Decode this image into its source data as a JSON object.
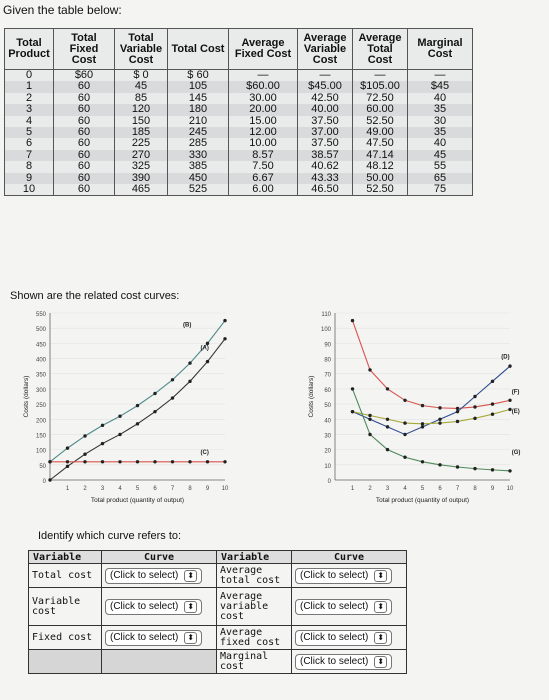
{
  "page": {
    "title": "Given the table below:"
  },
  "cost_table": {
    "headers": [
      "Total Product",
      "Total Fixed Cost",
      "Total Variable Cost",
      "Total Cost",
      "Average Fixed Cost",
      "Average Variable Cost",
      "Average Total Cost",
      "Marginal Cost"
    ],
    "rows": [
      [
        "0",
        "$60",
        "$ 0",
        "$ 60",
        "—",
        "—",
        "—",
        "—"
      ],
      [
        "1",
        "60",
        "45",
        "105",
        "$60.00",
        "$45.00",
        "$105.00",
        "$45"
      ],
      [
        "2",
        "60",
        "85",
        "145",
        "30.00",
        "42.50",
        "72.50",
        "40"
      ],
      [
        "3",
        "60",
        "120",
        "180",
        "20.00",
        "40.00",
        "60.00",
        "35"
      ],
      [
        "4",
        "60",
        "150",
        "210",
        "15.00",
        "37.50",
        "52.50",
        "30"
      ],
      [
        "5",
        "60",
        "185",
        "245",
        "12.00",
        "37.00",
        "49.00",
        "35"
      ],
      [
        "6",
        "60",
        "225",
        "285",
        "10.00",
        "37.50",
        "47.50",
        "40"
      ],
      [
        "7",
        "60",
        "270",
        "330",
        "8.57",
        "38.57",
        "47.14",
        "45"
      ],
      [
        "8",
        "60",
        "325",
        "385",
        "7.50",
        "40.62",
        "48.12",
        "55"
      ],
      [
        "9",
        "60",
        "390",
        "450",
        "6.67",
        "43.33",
        "50.00",
        "65"
      ],
      [
        "10",
        "60",
        "465",
        "525",
        "6.00",
        "46.50",
        "52.50",
        "75"
      ]
    ]
  },
  "curves_heading": "Shown are the related cost curves:",
  "chart_data": [
    {
      "type": "line",
      "ylabel": "Costs (dollars)",
      "xlabel": "Total product (quantity of output)",
      "x": [
        1,
        2,
        3,
        4,
        5,
        6,
        7,
        8,
        9,
        10
      ],
      "x_ticks": [
        "1",
        "2",
        "3",
        "4",
        "5",
        "6",
        "7",
        "8",
        "9",
        "10"
      ],
      "y_ticks": [
        "550",
        "500",
        "450",
        "400",
        "350",
        "300",
        "250",
        "200",
        "150",
        "100",
        "50",
        "0"
      ],
      "ylim": [
        0,
        550
      ],
      "series": [
        {
          "name": "(B)",
          "color": "#4f8a8b",
          "x": [
            0,
            1,
            2,
            3,
            4,
            5,
            6,
            7,
            8,
            9,
            10
          ],
          "values": [
            60,
            105,
            145,
            180,
            210,
            245,
            285,
            330,
            385,
            450,
            525
          ]
        },
        {
          "name": "(A)",
          "color": "#333333",
          "x": [
            0,
            1,
            2,
            3,
            4,
            5,
            6,
            7,
            8,
            9,
            10
          ],
          "values": [
            0,
            45,
            85,
            120,
            150,
            185,
            225,
            270,
            325,
            390,
            465
          ]
        },
        {
          "name": "(C)",
          "color": "#d9534f",
          "x": [
            0,
            1,
            2,
            3,
            4,
            5,
            6,
            7,
            8,
            9,
            10
          ],
          "values": [
            60,
            60,
            60,
            60,
            60,
            60,
            60,
            60,
            60,
            60,
            60
          ]
        }
      ]
    },
    {
      "type": "line",
      "ylabel": "Costs (dollars)",
      "xlabel": "Total product (quantity of output)",
      "x": [
        1,
        2,
        3,
        4,
        5,
        6,
        7,
        8,
        9,
        10
      ],
      "x_ticks": [
        "1",
        "2",
        "3",
        "4",
        "5",
        "6",
        "7",
        "8",
        "9",
        "10"
      ],
      "y_ticks": [
        "110",
        "100",
        "90",
        "80",
        "70",
        "60",
        "50",
        "40",
        "30",
        "20",
        "10",
        "0"
      ],
      "ylim": [
        0,
        110
      ],
      "series": [
        {
          "name": "(D)",
          "color": "#d9534f",
          "x": [
            1,
            2,
            3,
            4,
            5,
            6,
            7,
            8,
            9,
            10
          ],
          "values": [
            105,
            72.5,
            60,
            52.5,
            49,
            47.5,
            47.14,
            48.12,
            50,
            52.5
          ]
        },
        {
          "name": "(F)",
          "color": "#2e4d8f",
          "x": [
            1,
            2,
            3,
            4,
            5,
            6,
            7,
            8,
            9,
            10
          ],
          "values": [
            45,
            40,
            35,
            30,
            35,
            40,
            45,
            55,
            65,
            75
          ]
        },
        {
          "name": "(E)",
          "color": "#a8a83a",
          "x": [
            1,
            2,
            3,
            4,
            5,
            6,
            7,
            8,
            9,
            10
          ],
          "values": [
            45,
            42.5,
            40,
            37.5,
            37,
            37.5,
            38.57,
            40.62,
            43.33,
            46.5
          ]
        },
        {
          "name": "(G)",
          "color": "#4e8a5a",
          "x": [
            1,
            2,
            3,
            4,
            5,
            6,
            7,
            8,
            9,
            10
          ],
          "values": [
            60,
            30,
            20,
            15,
            12,
            10,
            8.57,
            7.5,
            6.67,
            6
          ]
        }
      ]
    }
  ],
  "question": {
    "prompt": "Identify which curve refers to:",
    "headers": [
      "Variable",
      "Curve",
      "Variable",
      "Curve"
    ],
    "left": [
      {
        "label": "Total cost",
        "select": "(Click to select)",
        "arrow": "⬍"
      },
      {
        "label": "Variable cost",
        "select": "(Click to select)",
        "arrow": "⬍"
      },
      {
        "label": "Fixed cost",
        "select": "(Click to select)",
        "arrow": "⬍"
      }
    ],
    "right": [
      {
        "label": "Average total cost",
        "select": "(Click to select)",
        "arrow": "⬍"
      },
      {
        "label": "Average variable cost",
        "select": "(Click to select)",
        "arrow": "⬍"
      },
      {
        "label": "Average fixed cost",
        "select": "(Click to select)",
        "arrow": "⬍"
      },
      {
        "label": "Marginal cost",
        "select": "(Click to select)",
        "arrow": "⬍"
      }
    ]
  }
}
